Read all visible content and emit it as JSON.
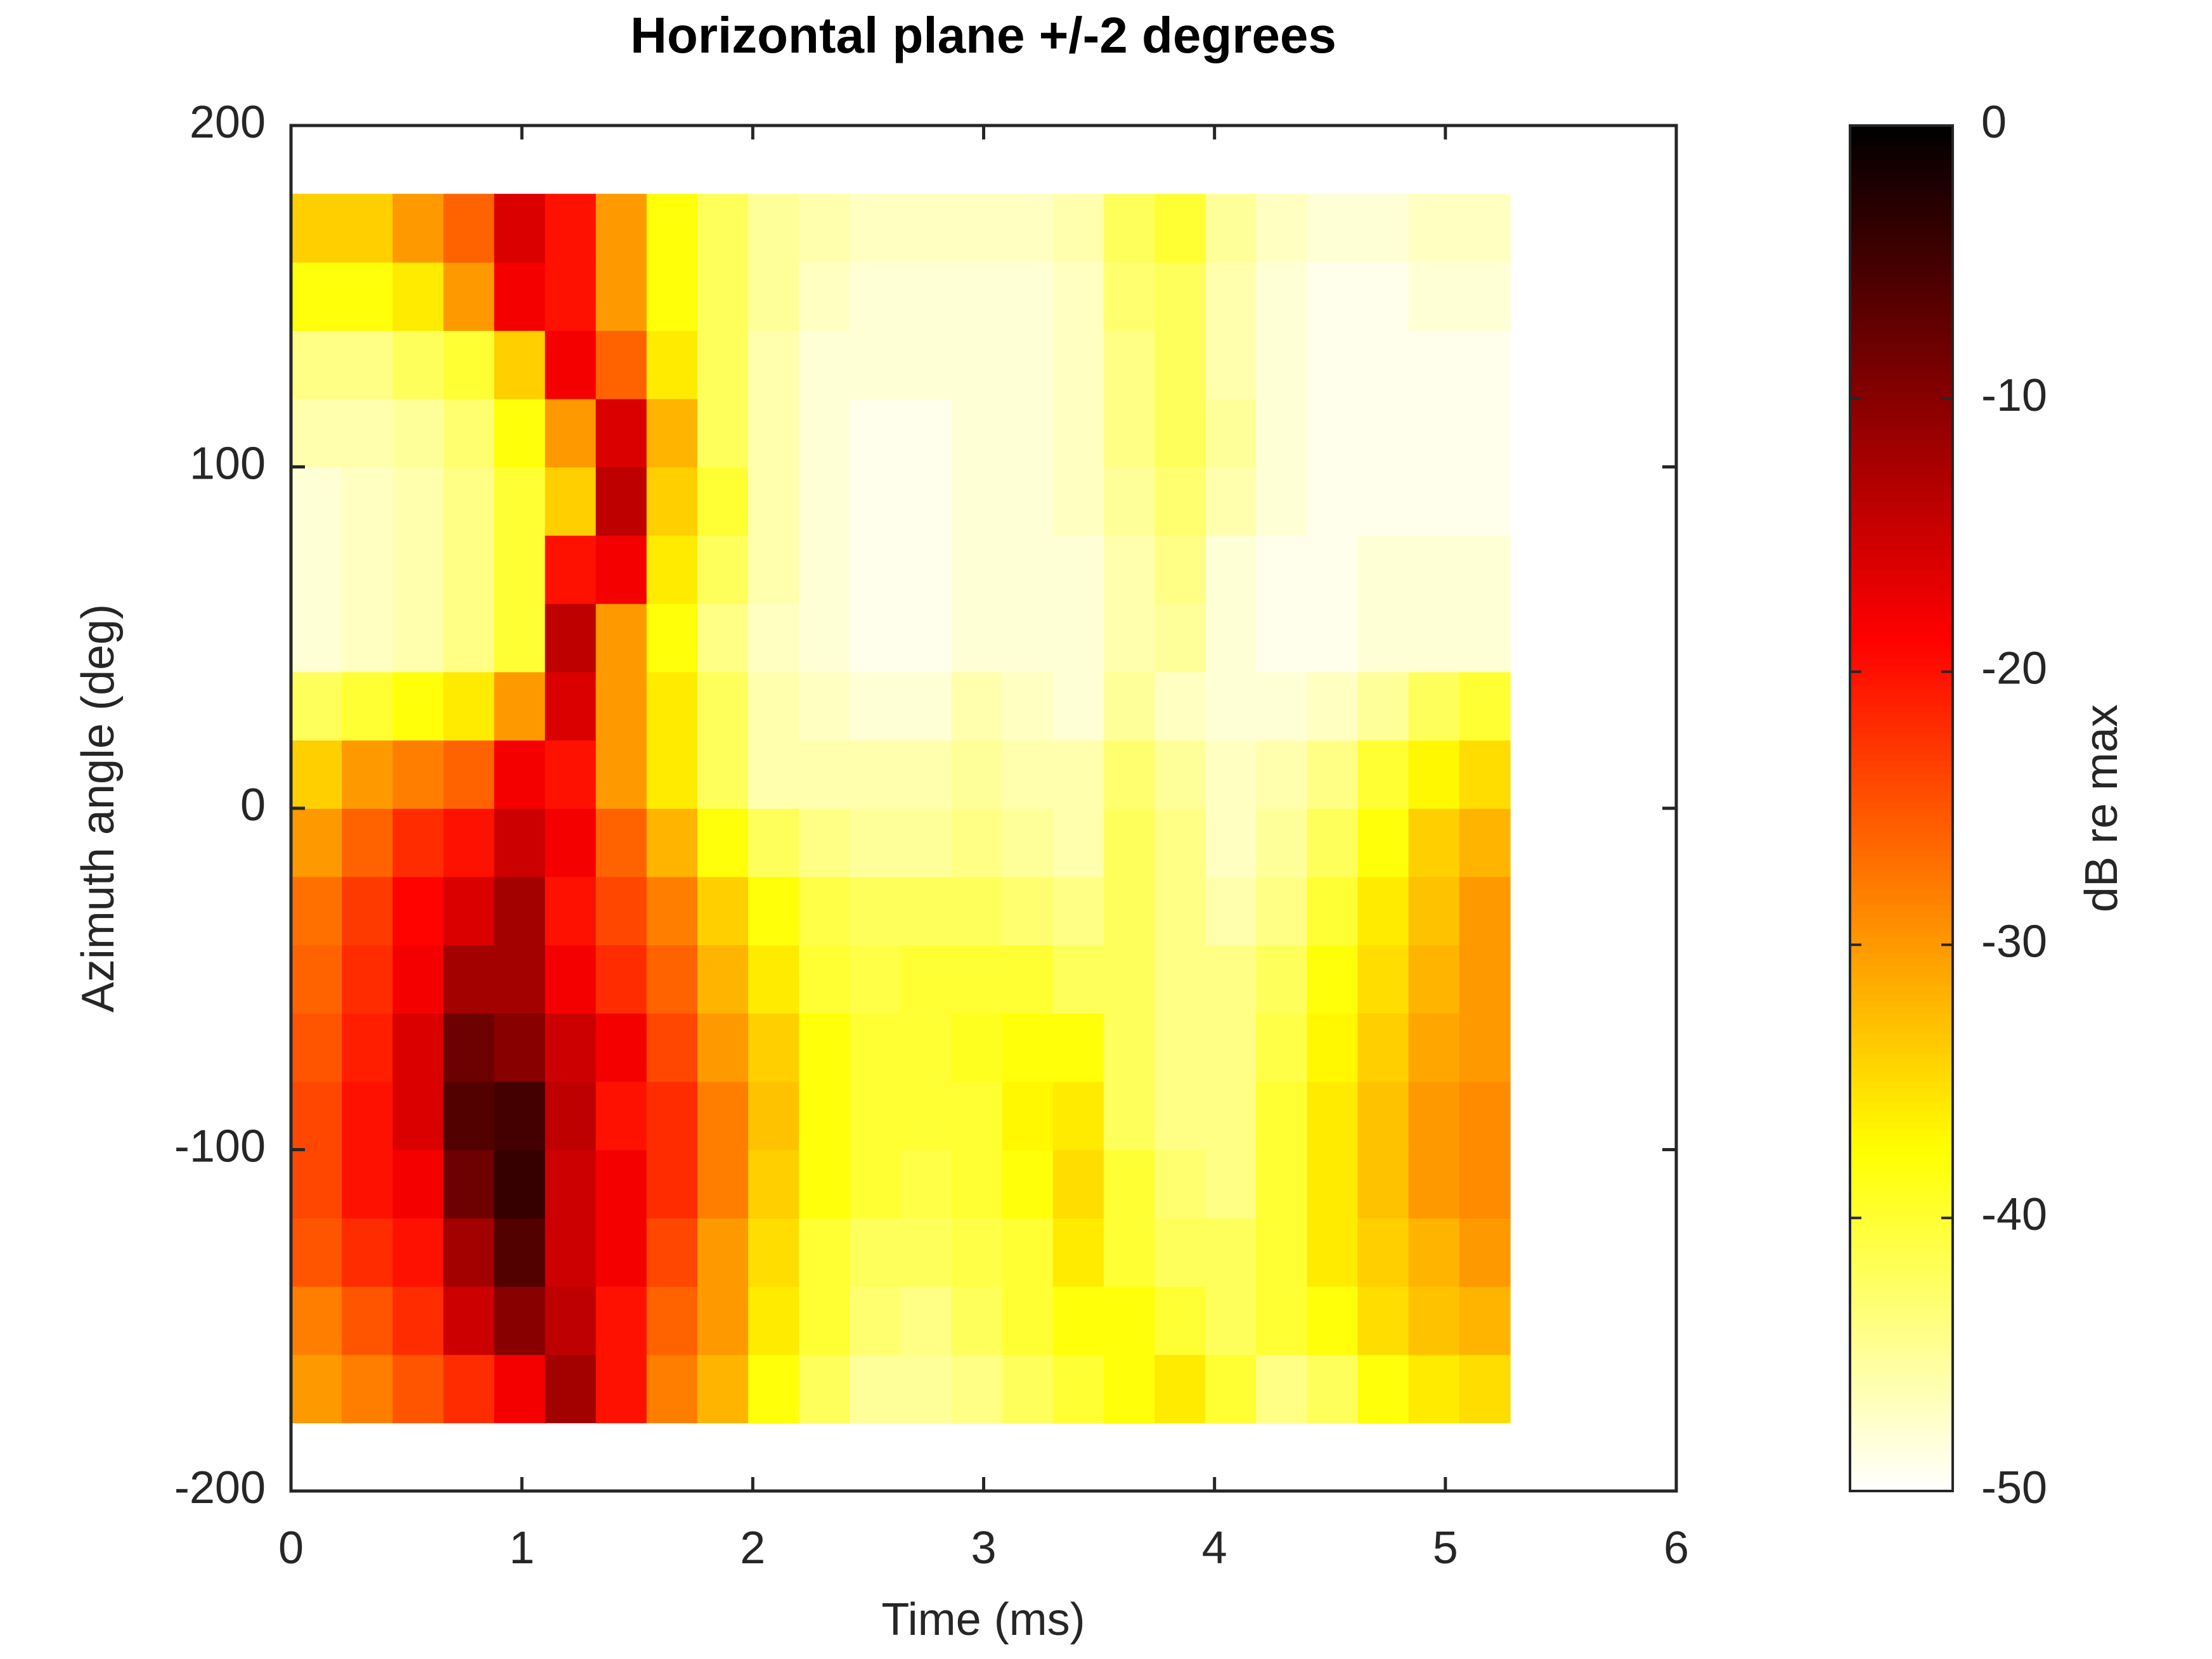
{
  "chart_data": {
    "type": "heatmap",
    "title": "Horizontal plane +/-2 degrees",
    "xlabel": "Time (ms)",
    "ylabel": "Azimuth angle (deg)",
    "colorbar_label": "dB re max",
    "colormap": "hot",
    "colormap_reversed": true,
    "x": [
      0.11,
      0.33,
      0.55,
      0.77,
      0.99,
      1.21,
      1.43,
      1.65,
      1.87,
      2.09,
      2.31,
      2.53,
      2.75,
      2.97,
      3.19,
      3.41,
      3.63,
      3.85,
      4.07,
      4.29,
      4.51,
      4.73,
      4.95,
      5.17
    ],
    "y": [
      -170,
      -150,
      -130,
      -110,
      -90,
      -70,
      -50,
      -30,
      -10,
      10,
      30,
      50,
      70,
      90,
      110,
      130,
      150,
      170
    ],
    "values": [
      [
        -30,
        -28,
        -25,
        -22,
        -18,
        -12,
        -20,
        -28,
        -32,
        -38,
        -42,
        -45,
        -45,
        -44,
        -42,
        -40,
        -38,
        -36,
        -40,
        -44,
        -42,
        -38,
        -36,
        -35
      ],
      [
        -28,
        -25,
        -22,
        -15,
        -10,
        -14,
        -20,
        -26,
        -30,
        -36,
        -40,
        -43,
        -44,
        -42,
        -40,
        -38,
        -38,
        -40,
        -42,
        -40,
        -38,
        -35,
        -33,
        -32
      ],
      [
        -25,
        -22,
        -20,
        -12,
        -6,
        -15,
        -18,
        -24,
        -30,
        -35,
        -40,
        -42,
        -42,
        -41,
        -40,
        -36,
        -40,
        -42,
        -42,
        -40,
        -36,
        -34,
        -32,
        -30
      ],
      [
        -24,
        -20,
        -18,
        -8,
        -4,
        -15,
        -18,
        -22,
        -28,
        -34,
        -38,
        -40,
        -41,
        -40,
        -38,
        -35,
        -40,
        -43,
        -44,
        -40,
        -36,
        -33,
        -30,
        -29
      ],
      [
        -24,
        -20,
        -16,
        -6,
        -5,
        -14,
        -20,
        -22,
        -28,
        -33,
        -38,
        -40,
        -40,
        -40,
        -37,
        -36,
        -42,
        -44,
        -44,
        -40,
        -36,
        -33,
        -30,
        -29
      ],
      [
        -25,
        -21,
        -16,
        -8,
        -10,
        -15,
        -18,
        -24,
        -30,
        -34,
        -38,
        -40,
        -40,
        -39,
        -38,
        -38,
        -42,
        -44,
        -44,
        -41,
        -37,
        -34,
        -31,
        -30
      ],
      [
        -26,
        -22,
        -18,
        -12,
        -12,
        -18,
        -22,
        -26,
        -32,
        -36,
        -40,
        -41,
        -40,
        -40,
        -40,
        -42,
        -42,
        -44,
        -44,
        -42,
        -38,
        -35,
        -32,
        -30
      ],
      [
        -27,
        -23,
        -19,
        -16,
        -12,
        -20,
        -24,
        -28,
        -34,
        -38,
        -41,
        -42,
        -42,
        -42,
        -43,
        -44,
        -42,
        -44,
        -46,
        -44,
        -40,
        -36,
        -33,
        -30
      ],
      [
        -30,
        -26,
        -22,
        -20,
        -15,
        -18,
        -26,
        -32,
        -38,
        -42,
        -44,
        -45,
        -45,
        -44,
        -45,
        -46,
        -42,
        -44,
        -47,
        -45,
        -42,
        -38,
        -34,
        -32
      ],
      [
        -34,
        -30,
        -28,
        -26,
        -18,
        -20,
        -30,
        -36,
        -42,
        -46,
        -46,
        -46,
        -46,
        -45,
        -46,
        -46,
        -43,
        -45,
        -47,
        -46,
        -44,
        -40,
        -37,
        -35
      ],
      [
        -42,
        -40,
        -38,
        -36,
        -30,
        -16,
        -30,
        -36,
        -42,
        -46,
        -47,
        -48,
        -48,
        -46,
        -47,
        -48,
        -45,
        -47,
        -48,
        -48,
        -47,
        -45,
        -42,
        -40
      ],
      [
        -48,
        -47,
        -46,
        -44,
        -40,
        -14,
        -30,
        -38,
        -44,
        -47,
        -48,
        -49,
        -49,
        -48,
        -48,
        -48,
        -46,
        -45,
        -48,
        -49,
        -49,
        -48,
        -48,
        -48
      ],
      [
        -48,
        -47,
        -46,
        -44,
        -40,
        -20,
        -18,
        -36,
        -42,
        -46,
        -48,
        -49,
        -49,
        -48,
        -48,
        -48,
        -46,
        -44,
        -48,
        -49,
        -49,
        -48,
        -48,
        -48
      ],
      [
        -48,
        -47,
        -46,
        -44,
        -40,
        -34,
        -14,
        -34,
        -40,
        -46,
        -48,
        -49,
        -49,
        -48,
        -48,
        -47,
        -45,
        -43,
        -46,
        -48,
        -49,
        -49,
        -49,
        -49
      ],
      [
        -46,
        -46,
        -45,
        -43,
        -38,
        -30,
        -16,
        -32,
        -42,
        -46,
        -48,
        -49,
        -49,
        -48,
        -48,
        -47,
        -44,
        -42,
        -45,
        -48,
        -49,
        -49,
        -49,
        -49
      ],
      [
        -44,
        -44,
        -42,
        -40,
        -34,
        -18,
        -26,
        -36,
        -42,
        -46,
        -48,
        -48,
        -48,
        -48,
        -48,
        -47,
        -44,
        -42,
        -46,
        -48,
        -49,
        -49,
        -49,
        -49
      ],
      [
        -38,
        -38,
        -36,
        -30,
        -18,
        -20,
        -30,
        -38,
        -42,
        -45,
        -47,
        -48,
        -48,
        -48,
        -48,
        -47,
        -43,
        -42,
        -46,
        -48,
        -49,
        -49,
        -48,
        -48
      ],
      [
        -34,
        -34,
        -30,
        -26,
        -16,
        -20,
        -30,
        -38,
        -42,
        -45,
        -46,
        -47,
        -47,
        -47,
        -47,
        -46,
        -42,
        -40,
        -45,
        -47,
        -48,
        -48,
        -47,
        -47
      ]
    ],
    "xlim": [
      0,
      6
    ],
    "xticks": [
      0,
      1,
      2,
      3,
      4,
      5,
      6
    ],
    "ylim": [
      -200,
      200
    ],
    "yticks": [
      -200,
      -100,
      0,
      100,
      200
    ],
    "clim": [
      -50,
      0
    ],
    "cticks": [
      -50,
      -40,
      -30,
      -20,
      -10,
      0
    ]
  }
}
